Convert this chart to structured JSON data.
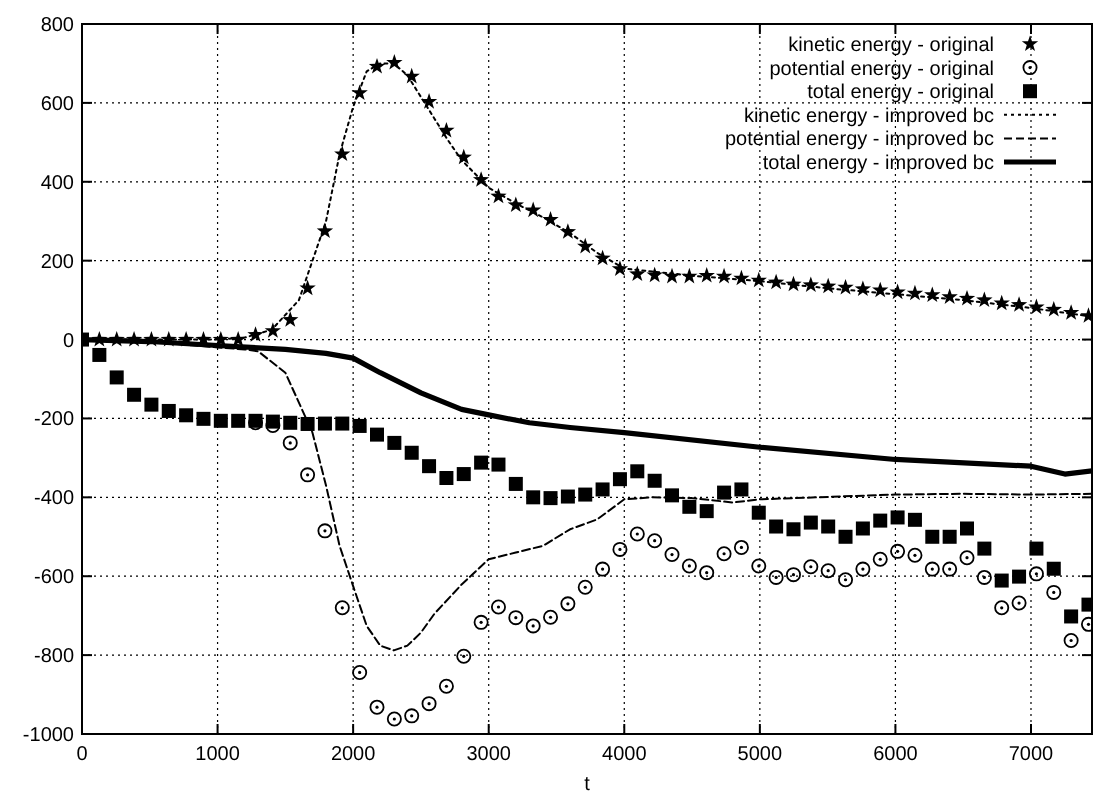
{
  "chart_data": {
    "type": "scatter",
    "xlabel": "t",
    "xlim": [
      0,
      7450
    ],
    "ylim": [
      -1000,
      800
    ],
    "xticks": [
      0,
      1000,
      2000,
      3000,
      4000,
      5000,
      6000,
      7000
    ],
    "yticks": [
      -1000,
      -800,
      -600,
      -400,
      -200,
      0,
      200,
      400,
      600,
      800
    ],
    "grid": true,
    "legend": "top right",
    "x": [
      0,
      128,
      256,
      384,
      512,
      640,
      768,
      896,
      1024,
      1152,
      1280,
      1408,
      1536,
      1664,
      1792,
      1920,
      2048,
      2176,
      2304,
      2432,
      2560,
      2688,
      2816,
      2944,
      3072,
      3200,
      3328,
      3456,
      3584,
      3712,
      3840,
      3968,
      4096,
      4224,
      4352,
      4480,
      4608,
      4736,
      4864,
      4992,
      5120,
      5248,
      5376,
      5504,
      5632,
      5760,
      5888,
      6016,
      6144,
      6272,
      6400,
      6528,
      6656,
      6784,
      6912,
      7040,
      7168,
      7296,
      7424
    ],
    "series": [
      {
        "name": "kinetic energy - original",
        "marker": "star",
        "color": "#000000",
        "values": [
          null,
          0,
          0,
          0,
          0,
          0,
          0,
          0,
          0,
          0,
          12,
          22,
          50,
          130,
          275,
          470,
          625,
          692,
          702,
          667,
          603,
          530,
          462,
          405,
          363,
          341,
          328,
          304,
          273,
          236,
          206,
          179,
          166,
          163,
          160,
          160,
          162,
          160,
          155,
          150,
          145,
          140,
          138,
          135,
          132,
          128,
          125,
          120,
          117,
          113,
          108,
          104,
          100,
          92,
          88,
          82,
          76,
          68,
          60
        ]
      },
      {
        "name": "potential energy - original",
        "marker": "circle",
        "color": "#000000",
        "values": [
          null,
          null,
          null,
          null,
          null,
          null,
          null,
          null,
          null,
          null,
          -211,
          -218,
          -262,
          -343,
          -485,
          -680,
          -844,
          -932,
          -962,
          -954,
          -923,
          -879,
          -803,
          -717,
          -678,
          -705,
          -726,
          -704,
          -670,
          -628,
          -582,
          -532,
          -493,
          -510,
          -545,
          -574,
          -591,
          -543,
          -527,
          -574,
          -603,
          -596,
          -576,
          -586,
          -609,
          -582,
          -557,
          -537,
          -547,
          -582,
          -582,
          -553,
          -603,
          -680,
          -668,
          -594,
          -641,
          -763,
          -722
        ]
      },
      {
        "name": "total energy - original",
        "marker": "square",
        "color": "#000000",
        "values": [
          0,
          -39,
          -96,
          -140,
          -165,
          -181,
          -192,
          -201,
          -206,
          -206,
          -206,
          -208,
          -211,
          -214,
          -213,
          -213,
          -219,
          -241,
          -262,
          -287,
          -321,
          -351,
          -341,
          -312,
          -317,
          -366,
          -400,
          -402,
          -398,
          -393,
          -380,
          -354,
          -334,
          -358,
          -395,
          -424,
          -435,
          -388,
          -380,
          -439,
          -474,
          -481,
          -464,
          -474,
          -500,
          -479,
          -459,
          -451,
          -457,
          -500,
          -500,
          -479,
          -530,
          -611,
          -601,
          -530,
          -581,
          -702,
          -672
        ]
      },
      {
        "name": "kinetic energy - improved bc",
        "type": "line",
        "line_style": "dotted",
        "color": "#000000",
        "x": [
          0,
          500,
          1000,
          1200,
          1400,
          1600,
          1800,
          1900,
          2000,
          2100,
          2200,
          2300,
          2400,
          2500,
          2600,
          2700,
          2800,
          3000,
          3200,
          3400,
          3600,
          3800,
          4000,
          4500,
          5000,
          5500,
          6000,
          6500,
          7000,
          7450
        ],
        "values": [
          0,
          0,
          0,
          5,
          25,
          100,
          300,
          470,
          590,
          680,
          700,
          700,
          670,
          615,
          560,
          505,
          455,
          385,
          345,
          310,
          270,
          220,
          180,
          162,
          148,
          130,
          115,
          100,
          80,
          58
        ]
      },
      {
        "name": "potential energy - improved bc",
        "type": "line",
        "line_style": "dashed",
        "color": "#000000",
        "x": [
          0,
          500,
          1000,
          1200,
          1300,
          1500,
          1700,
          1800,
          1900,
          2000,
          2100,
          2200,
          2300,
          2400,
          2500,
          2600,
          2800,
          3000,
          3200,
          3400,
          3600,
          3800,
          4000,
          4200,
          4500,
          4800,
          5000,
          5500,
          6000,
          6500,
          7000,
          7450
        ],
        "values": [
          0,
          -5,
          -20,
          -25,
          -30,
          -84,
          -236,
          -370,
          -523,
          -625,
          -726,
          -776,
          -788,
          -776,
          -743,
          -695,
          -621,
          -557,
          -540,
          -523,
          -481,
          -456,
          -405,
          -400,
          -402,
          -413,
          -405,
          -399,
          -393,
          -391,
          -393,
          -391
        ]
      },
      {
        "name": "total energy - improved bc",
        "type": "line",
        "line_style": "solid",
        "color": "#000000",
        "x": [
          0,
          500,
          1000,
          1500,
          1800,
          2000,
          2200,
          2500,
          2800,
          3000,
          3300,
          3600,
          4000,
          5000,
          6000,
          7000,
          7250,
          7450
        ],
        "values": [
          0,
          -5,
          -15,
          -25,
          -35,
          -47,
          -84,
          -135,
          -177,
          -191,
          -211,
          -223,
          -236,
          -273,
          -304,
          -321,
          -341,
          -333
        ]
      }
    ]
  }
}
